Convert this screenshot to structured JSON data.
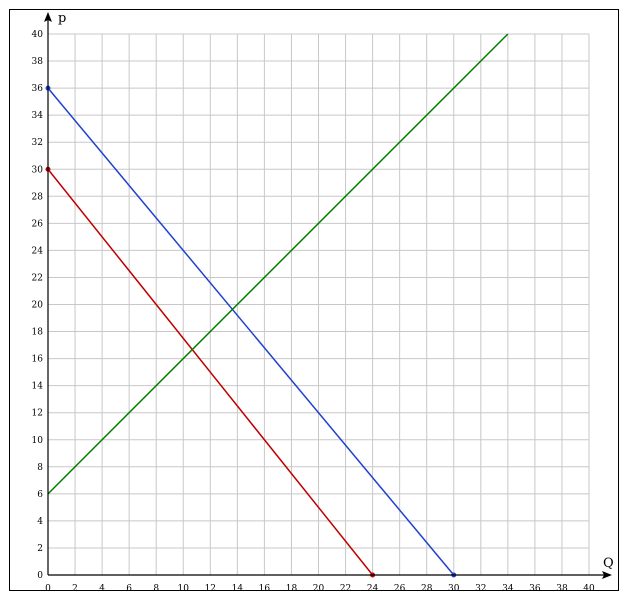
{
  "chart_data": {
    "type": "line",
    "xlabel": "Q",
    "ylabel": "p",
    "xlim": [
      0,
      40
    ],
    "ylim": [
      0,
      40
    ],
    "xticks": [
      0,
      2,
      4,
      6,
      8,
      10,
      12,
      14,
      16,
      18,
      20,
      22,
      24,
      26,
      28,
      30,
      32,
      34,
      36,
      38,
      40
    ],
    "yticks": [
      0,
      2,
      4,
      6,
      8,
      10,
      12,
      14,
      16,
      18,
      20,
      22,
      24,
      26,
      28,
      30,
      32,
      34,
      36,
      38,
      40
    ],
    "grid": true,
    "series": [
      {
        "color": "#2040d0",
        "points": [
          [
            0,
            36
          ],
          [
            30,
            0
          ]
        ],
        "endpoint_markers": true
      },
      {
        "color": "#c00000",
        "points": [
          [
            0,
            30
          ],
          [
            24,
            0
          ]
        ],
        "endpoint_markers": true
      },
      {
        "color": "#008000",
        "points": [
          [
            0,
            6
          ],
          [
            34,
            40
          ]
        ],
        "endpoint_markers": false
      }
    ]
  }
}
